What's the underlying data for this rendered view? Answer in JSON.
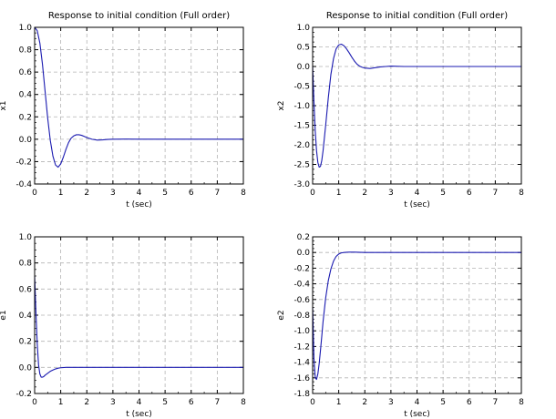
{
  "style": {
    "line_color": "#1a1ab0",
    "grid_color": "#b4b4b4",
    "frame_color": "#000000"
  },
  "chart_data": [
    {
      "type": "line",
      "title": "Response to initial condition (Full order)",
      "xlabel": "t (sec)",
      "ylabel": "x1",
      "xlim": [
        0,
        8
      ],
      "ylim": [
        -0.4,
        1.0
      ],
      "xticks": [
        "0",
        "1",
        "2",
        "3",
        "4",
        "5",
        "6",
        "7",
        "8"
      ],
      "yticks": [
        "-0.4",
        "-0.2",
        "0.0",
        "0.2",
        "0.4",
        "0.6",
        "0.8",
        "1.0"
      ],
      "grid": true,
      "series": [
        {
          "x": [
            0,
            0.1,
            0.2,
            0.3,
            0.4,
            0.5,
            0.6,
            0.7,
            0.8,
            0.9,
            1.0,
            1.1,
            1.2,
            1.3,
            1.4,
            1.5,
            1.6,
            1.7,
            1.8,
            1.9,
            2.0,
            2.2,
            2.4,
            2.6,
            2.8,
            3.0,
            3.5,
            4.0,
            5.0,
            6.0,
            7.0,
            8.0
          ],
          "y": [
            1.0,
            0.97,
            0.86,
            0.67,
            0.43,
            0.19,
            -0.01,
            -0.15,
            -0.23,
            -0.25,
            -0.22,
            -0.16,
            -0.09,
            -0.03,
            0.01,
            0.03,
            0.04,
            0.04,
            0.035,
            0.025,
            0.015,
            0.0,
            -0.008,
            -0.006,
            -0.002,
            0.0,
            0.001,
            0.0,
            0.0,
            0.0,
            0.0,
            0.0
          ]
        }
      ]
    },
    {
      "type": "line",
      "title": "Response to initial condition (Full order)",
      "xlabel": "t (sec)",
      "ylabel": "x2",
      "xlim": [
        0,
        8
      ],
      "ylim": [
        -3.0,
        1.0
      ],
      "xticks": [
        "0",
        "1",
        "2",
        "3",
        "4",
        "5",
        "6",
        "7",
        "8"
      ],
      "yticks": [
        "-3.0",
        "-2.5",
        "-2.0",
        "-1.5",
        "-1.0",
        "-0.5",
        "0.0",
        "0.5",
        "1.0"
      ],
      "grid": true,
      "series": [
        {
          "x": [
            0,
            0.05,
            0.1,
            0.15,
            0.2,
            0.25,
            0.3,
            0.35,
            0.4,
            0.5,
            0.6,
            0.7,
            0.8,
            0.9,
            1.0,
            1.1,
            1.2,
            1.3,
            1.4,
            1.5,
            1.6,
            1.7,
            1.8,
            1.9,
            2.0,
            2.2,
            2.4,
            2.6,
            2.8,
            3.0,
            3.5,
            4.0,
            5.0,
            6.0,
            7.0,
            8.0
          ],
          "y": [
            0.0,
            -0.9,
            -1.65,
            -2.15,
            -2.45,
            -2.57,
            -2.55,
            -2.4,
            -2.15,
            -1.5,
            -0.8,
            -0.2,
            0.2,
            0.45,
            0.55,
            0.57,
            0.53,
            0.45,
            0.35,
            0.24,
            0.14,
            0.06,
            0.01,
            -0.02,
            -0.04,
            -0.05,
            -0.03,
            -0.01,
            0.0,
            0.01,
            0.0,
            0.0,
            0.0,
            0.0,
            0.0,
            0.0
          ]
        }
      ]
    },
    {
      "type": "line",
      "title": "",
      "xlabel": "t (sec)",
      "ylabel": "e1",
      "xlim": [
        0,
        8
      ],
      "ylim": [
        -0.2,
        1.0
      ],
      "xticks": [
        "0",
        "1",
        "2",
        "3",
        "4",
        "5",
        "6",
        "7",
        "8"
      ],
      "yticks": [
        "-0.2",
        "0.0",
        "0.2",
        "0.4",
        "0.6",
        "0.8",
        "1.0"
      ],
      "grid": true,
      "series": [
        {
          "x": [
            0,
            0.05,
            0.1,
            0.15,
            0.2,
            0.25,
            0.3,
            0.35,
            0.4,
            0.5,
            0.6,
            0.7,
            0.8,
            0.9,
            1.0,
            1.2,
            1.5,
            2.0,
            3.0,
            4.0,
            5.0,
            6.0,
            7.0,
            8.0
          ],
          "y": [
            0.7,
            0.42,
            0.18,
            0.02,
            -0.05,
            -0.075,
            -0.075,
            -0.07,
            -0.06,
            -0.045,
            -0.03,
            -0.02,
            -0.012,
            -0.006,
            -0.003,
            0.0,
            0.0,
            0.0,
            0.0,
            0.0,
            0.0,
            0.0,
            0.0,
            0.0
          ]
        }
      ]
    },
    {
      "type": "line",
      "title": "",
      "xlabel": "t (sec)",
      "ylabel": "e2",
      "xlim": [
        0,
        8
      ],
      "ylim": [
        -1.8,
        0.2
      ],
      "xticks": [
        "0",
        "1",
        "2",
        "3",
        "4",
        "5",
        "6",
        "7",
        "8"
      ],
      "yticks": [
        "-1.8",
        "-1.6",
        "-1.4",
        "-1.2",
        "-1.0",
        "-0.8",
        "-0.6",
        "-0.4",
        "-0.2",
        "0.0",
        "0.2"
      ],
      "grid": true,
      "series": [
        {
          "x": [
            0,
            0.05,
            0.1,
            0.15,
            0.2,
            0.25,
            0.3,
            0.35,
            0.4,
            0.5,
            0.6,
            0.7,
            0.8,
            0.9,
            1.0,
            1.1,
            1.2,
            1.4,
            1.6,
            2.0,
            3.0,
            4.0,
            5.0,
            6.0,
            7.0,
            8.0
          ],
          "y": [
            -0.7,
            -1.35,
            -1.6,
            -1.62,
            -1.55,
            -1.42,
            -1.25,
            -1.07,
            -0.88,
            -0.58,
            -0.36,
            -0.21,
            -0.11,
            -0.05,
            -0.02,
            -0.005,
            0.0,
            0.005,
            0.005,
            0.0,
            0.0,
            0.0,
            0.0,
            0.0,
            0.0,
            0.0
          ]
        }
      ]
    }
  ]
}
